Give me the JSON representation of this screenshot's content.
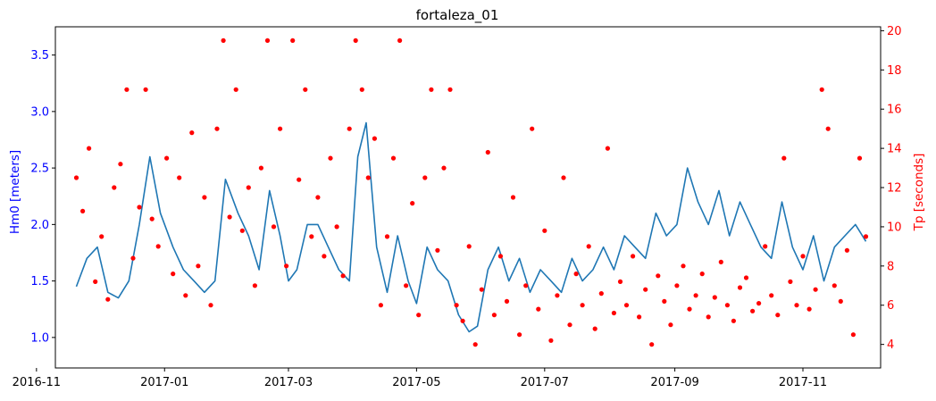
{
  "chart_data": {
    "type": "line",
    "title": "fortaleza_01",
    "xlabel": "",
    "xlim": [
      "2016-11-10",
      "2017-12-08"
    ],
    "x_ticks": [
      "2016-11",
      "2017-01",
      "2017-03",
      "2017-05",
      "2017-07",
      "2017-09",
      "2017-11"
    ],
    "left_axis": {
      "label": "Hm0 [meters]",
      "color": "#0000ff",
      "ylim": [
        0.73,
        3.75
      ],
      "ticks": [
        "1.0",
        "1.5",
        "2.0",
        "2.5",
        "3.0",
        "3.5"
      ]
    },
    "right_axis": {
      "label": "Tp [seconds]",
      "color": "#ff0000",
      "ylim": [
        2.8,
        20.2
      ],
      "ticks": [
        "4",
        "6",
        "8",
        "10",
        "12",
        "14",
        "16",
        "18",
        "20"
      ]
    },
    "grid": false,
    "legend": "none",
    "series": [
      {
        "axis": "left",
        "kind": "line",
        "color": "#1f77b4",
        "points": [
          [
            "2016-11-20",
            1.45
          ],
          [
            "2016-11-25",
            1.7
          ],
          [
            "2016-11-30",
            1.8
          ],
          [
            "2016-12-05",
            1.4
          ],
          [
            "2016-12-10",
            1.35
          ],
          [
            "2016-12-15",
            1.5
          ],
          [
            "2016-12-20",
            2.0
          ],
          [
            "2016-12-25",
            2.6
          ],
          [
            "2016-12-30",
            2.1
          ],
          [
            "2017-01-05",
            1.8
          ],
          [
            "2017-01-10",
            1.6
          ],
          [
            "2017-01-15",
            1.5
          ],
          [
            "2017-01-20",
            1.4
          ],
          [
            "2017-01-25",
            1.5
          ],
          [
            "2017-01-30",
            2.4
          ],
          [
            "2017-02-05",
            2.1
          ],
          [
            "2017-02-10",
            1.9
          ],
          [
            "2017-02-15",
            1.6
          ],
          [
            "2017-02-20",
            2.3
          ],
          [
            "2017-02-25",
            1.9
          ],
          [
            "2017-03-01",
            1.5
          ],
          [
            "2017-03-05",
            1.6
          ],
          [
            "2017-03-10",
            2.0
          ],
          [
            "2017-03-15",
            2.0
          ],
          [
            "2017-03-20",
            1.8
          ],
          [
            "2017-03-25",
            1.6
          ],
          [
            "2017-03-30",
            1.5
          ],
          [
            "2017-04-03",
            2.6
          ],
          [
            "2017-04-07",
            2.9
          ],
          [
            "2017-04-12",
            1.8
          ],
          [
            "2017-04-17",
            1.4
          ],
          [
            "2017-04-22",
            1.9
          ],
          [
            "2017-04-27",
            1.5
          ],
          [
            "2017-05-01",
            1.3
          ],
          [
            "2017-05-06",
            1.8
          ],
          [
            "2017-05-11",
            1.6
          ],
          [
            "2017-05-16",
            1.5
          ],
          [
            "2017-05-21",
            1.2
          ],
          [
            "2017-05-26",
            1.05
          ],
          [
            "2017-05-30",
            1.1
          ],
          [
            "2017-06-04",
            1.6
          ],
          [
            "2017-06-09",
            1.8
          ],
          [
            "2017-06-14",
            1.5
          ],
          [
            "2017-06-19",
            1.7
          ],
          [
            "2017-06-24",
            1.4
          ],
          [
            "2017-06-29",
            1.6
          ],
          [
            "2017-07-04",
            1.5
          ],
          [
            "2017-07-09",
            1.4
          ],
          [
            "2017-07-14",
            1.7
          ],
          [
            "2017-07-19",
            1.5
          ],
          [
            "2017-07-24",
            1.6
          ],
          [
            "2017-07-29",
            1.8
          ],
          [
            "2017-08-03",
            1.6
          ],
          [
            "2017-08-08",
            1.9
          ],
          [
            "2017-08-13",
            1.8
          ],
          [
            "2017-08-18",
            1.7
          ],
          [
            "2017-08-23",
            2.1
          ],
          [
            "2017-08-28",
            1.9
          ],
          [
            "2017-09-02",
            2.0
          ],
          [
            "2017-09-07",
            2.5
          ],
          [
            "2017-09-12",
            2.2
          ],
          [
            "2017-09-17",
            2.0
          ],
          [
            "2017-09-22",
            2.3
          ],
          [
            "2017-09-27",
            1.9
          ],
          [
            "2017-10-02",
            2.2
          ],
          [
            "2017-10-07",
            2.0
          ],
          [
            "2017-10-12",
            1.8
          ],
          [
            "2017-10-17",
            1.7
          ],
          [
            "2017-10-22",
            2.2
          ],
          [
            "2017-10-27",
            1.8
          ],
          [
            "2017-11-01",
            1.6
          ],
          [
            "2017-11-06",
            1.9
          ],
          [
            "2017-11-11",
            1.5
          ],
          [
            "2017-11-16",
            1.8
          ],
          [
            "2017-11-21",
            1.9
          ],
          [
            "2017-11-26",
            2.0
          ],
          [
            "2017-12-01",
            1.85
          ]
        ]
      },
      {
        "axis": "right",
        "kind": "scatter",
        "color": "#ff0000",
        "points": [
          [
            "2016-11-20",
            12.5
          ],
          [
            "2016-11-23",
            10.8
          ],
          [
            "2016-11-26",
            14.0
          ],
          [
            "2016-11-29",
            7.2
          ],
          [
            "2016-12-02",
            9.5
          ],
          [
            "2016-12-05",
            6.3
          ],
          [
            "2016-12-08",
            12.0
          ],
          [
            "2016-12-11",
            13.2
          ],
          [
            "2016-12-14",
            17.0
          ],
          [
            "2016-12-17",
            8.4
          ],
          [
            "2016-12-20",
            11.0
          ],
          [
            "2016-12-23",
            17.0
          ],
          [
            "2016-12-26",
            10.4
          ],
          [
            "2016-12-29",
            9.0
          ],
          [
            "2017-01-02",
            13.5
          ],
          [
            "2017-01-05",
            7.6
          ],
          [
            "2017-01-08",
            12.5
          ],
          [
            "2017-01-11",
            6.5
          ],
          [
            "2017-01-14",
            14.8
          ],
          [
            "2017-01-17",
            8.0
          ],
          [
            "2017-01-20",
            11.5
          ],
          [
            "2017-01-23",
            6.0
          ],
          [
            "2017-01-26",
            15.0
          ],
          [
            "2017-01-29",
            19.5
          ],
          [
            "2017-02-01",
            10.5
          ],
          [
            "2017-02-04",
            17.0
          ],
          [
            "2017-02-07",
            9.8
          ],
          [
            "2017-02-10",
            12.0
          ],
          [
            "2017-02-13",
            7.0
          ],
          [
            "2017-02-16",
            13.0
          ],
          [
            "2017-02-19",
            19.5
          ],
          [
            "2017-02-22",
            10.0
          ],
          [
            "2017-02-25",
            15.0
          ],
          [
            "2017-02-28",
            8.0
          ],
          [
            "2017-03-03",
            19.5
          ],
          [
            "2017-03-06",
            12.4
          ],
          [
            "2017-03-09",
            17.0
          ],
          [
            "2017-03-12",
            9.5
          ],
          [
            "2017-03-15",
            11.5
          ],
          [
            "2017-03-18",
            8.5
          ],
          [
            "2017-03-21",
            13.5
          ],
          [
            "2017-03-24",
            10.0
          ],
          [
            "2017-03-27",
            7.5
          ],
          [
            "2017-03-30",
            15.0
          ],
          [
            "2017-04-02",
            19.5
          ],
          [
            "2017-04-05",
            17.0
          ],
          [
            "2017-04-08",
            12.5
          ],
          [
            "2017-04-11",
            14.5
          ],
          [
            "2017-04-14",
            6.0
          ],
          [
            "2017-04-17",
            9.5
          ],
          [
            "2017-04-20",
            13.5
          ],
          [
            "2017-04-23",
            19.5
          ],
          [
            "2017-04-26",
            7.0
          ],
          [
            "2017-04-29",
            11.2
          ],
          [
            "2017-05-02",
            5.5
          ],
          [
            "2017-05-05",
            12.5
          ],
          [
            "2017-05-08",
            17.0
          ],
          [
            "2017-05-11",
            8.8
          ],
          [
            "2017-05-14",
            13.0
          ],
          [
            "2017-05-17",
            17.0
          ],
          [
            "2017-05-20",
            6.0
          ],
          [
            "2017-05-23",
            5.2
          ],
          [
            "2017-05-26",
            9.0
          ],
          [
            "2017-05-29",
            4.0
          ],
          [
            "2017-06-01",
            6.8
          ],
          [
            "2017-06-04",
            13.8
          ],
          [
            "2017-06-07",
            5.5
          ],
          [
            "2017-06-10",
            8.5
          ],
          [
            "2017-06-13",
            6.2
          ],
          [
            "2017-06-16",
            11.5
          ],
          [
            "2017-06-19",
            4.5
          ],
          [
            "2017-06-22",
            7.0
          ],
          [
            "2017-06-25",
            15.0
          ],
          [
            "2017-06-28",
            5.8
          ],
          [
            "2017-07-01",
            9.8
          ],
          [
            "2017-07-04",
            4.2
          ],
          [
            "2017-07-07",
            6.5
          ],
          [
            "2017-07-10",
            12.5
          ],
          [
            "2017-07-13",
            5.0
          ],
          [
            "2017-07-16",
            7.6
          ],
          [
            "2017-07-19",
            6.0
          ],
          [
            "2017-07-22",
            9.0
          ],
          [
            "2017-07-25",
            4.8
          ],
          [
            "2017-07-28",
            6.6
          ],
          [
            "2017-07-31",
            14.0
          ],
          [
            "2017-08-03",
            5.6
          ],
          [
            "2017-08-06",
            7.2
          ],
          [
            "2017-08-09",
            6.0
          ],
          [
            "2017-08-12",
            8.5
          ],
          [
            "2017-08-15",
            5.4
          ],
          [
            "2017-08-18",
            6.8
          ],
          [
            "2017-08-21",
            4.0
          ],
          [
            "2017-08-24",
            7.5
          ],
          [
            "2017-08-27",
            6.2
          ],
          [
            "2017-08-30",
            5.0
          ],
          [
            "2017-09-02",
            7.0
          ],
          [
            "2017-09-05",
            8.0
          ],
          [
            "2017-09-08",
            5.8
          ],
          [
            "2017-09-11",
            6.5
          ],
          [
            "2017-09-14",
            7.6
          ],
          [
            "2017-09-17",
            5.4
          ],
          [
            "2017-09-20",
            6.4
          ],
          [
            "2017-09-23",
            8.2
          ],
          [
            "2017-09-26",
            6.0
          ],
          [
            "2017-09-29",
            5.2
          ],
          [
            "2017-10-02",
            6.9
          ],
          [
            "2017-10-05",
            7.4
          ],
          [
            "2017-10-08",
            5.7
          ],
          [
            "2017-10-11",
            6.1
          ],
          [
            "2017-10-14",
            9.0
          ],
          [
            "2017-10-17",
            6.5
          ],
          [
            "2017-10-20",
            5.5
          ],
          [
            "2017-10-23",
            13.5
          ],
          [
            "2017-10-26",
            7.2
          ],
          [
            "2017-10-29",
            6.0
          ],
          [
            "2017-11-01",
            8.5
          ],
          [
            "2017-11-04",
            5.8
          ],
          [
            "2017-11-07",
            6.8
          ],
          [
            "2017-11-10",
            17.0
          ],
          [
            "2017-11-13",
            15.0
          ],
          [
            "2017-11-16",
            7.0
          ],
          [
            "2017-11-19",
            6.2
          ],
          [
            "2017-11-22",
            8.8
          ],
          [
            "2017-11-25",
            4.5
          ],
          [
            "2017-11-28",
            13.5
          ],
          [
            "2017-12-01",
            9.5
          ]
        ]
      }
    ]
  }
}
